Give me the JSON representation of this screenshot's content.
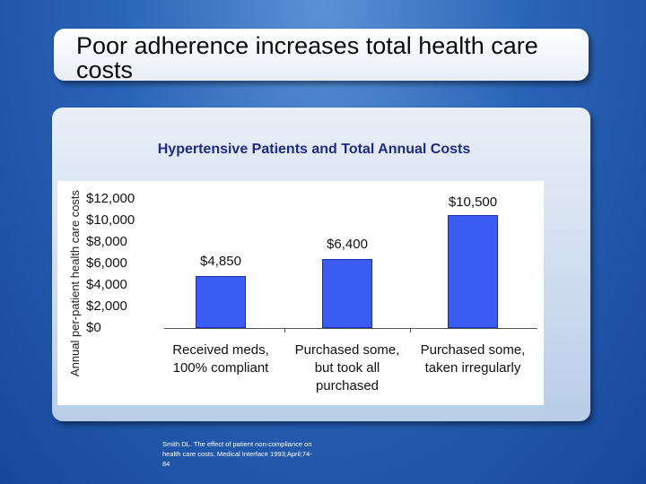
{
  "slide": {
    "title": "Poor adherence increases total health care costs",
    "citation": "Smith DL. The effect of patient non-compliance on health care costs. Medical Interface 1993;April;74-84"
  },
  "chart_data": {
    "type": "bar",
    "title": "Hypertensive Patients and Total Annual Costs",
    "ylabel": "Annual per-patient health care costs",
    "xlabel": "",
    "ylim": [
      0,
      12000
    ],
    "yticks": [
      "$12,000",
      "$10,000",
      "$8,000",
      "$6,000",
      "$4,000",
      "$2,000",
      "$0"
    ],
    "categories": [
      [
        "Received meds,",
        "100% compliant"
      ],
      [
        "Purchased some,",
        "but took all",
        "purchased"
      ],
      [
        "Purchased some,",
        "taken irregularly"
      ]
    ],
    "values": [
      4850,
      6400,
      10500
    ],
    "data_labels": [
      "$4,850",
      "$6,400",
      "$10,500"
    ],
    "colors": {
      "bar": "#3b5cf2",
      "bar_border": "#1a2fb0",
      "title": "#1c2b8a"
    },
    "grid": false,
    "legend": "none"
  }
}
